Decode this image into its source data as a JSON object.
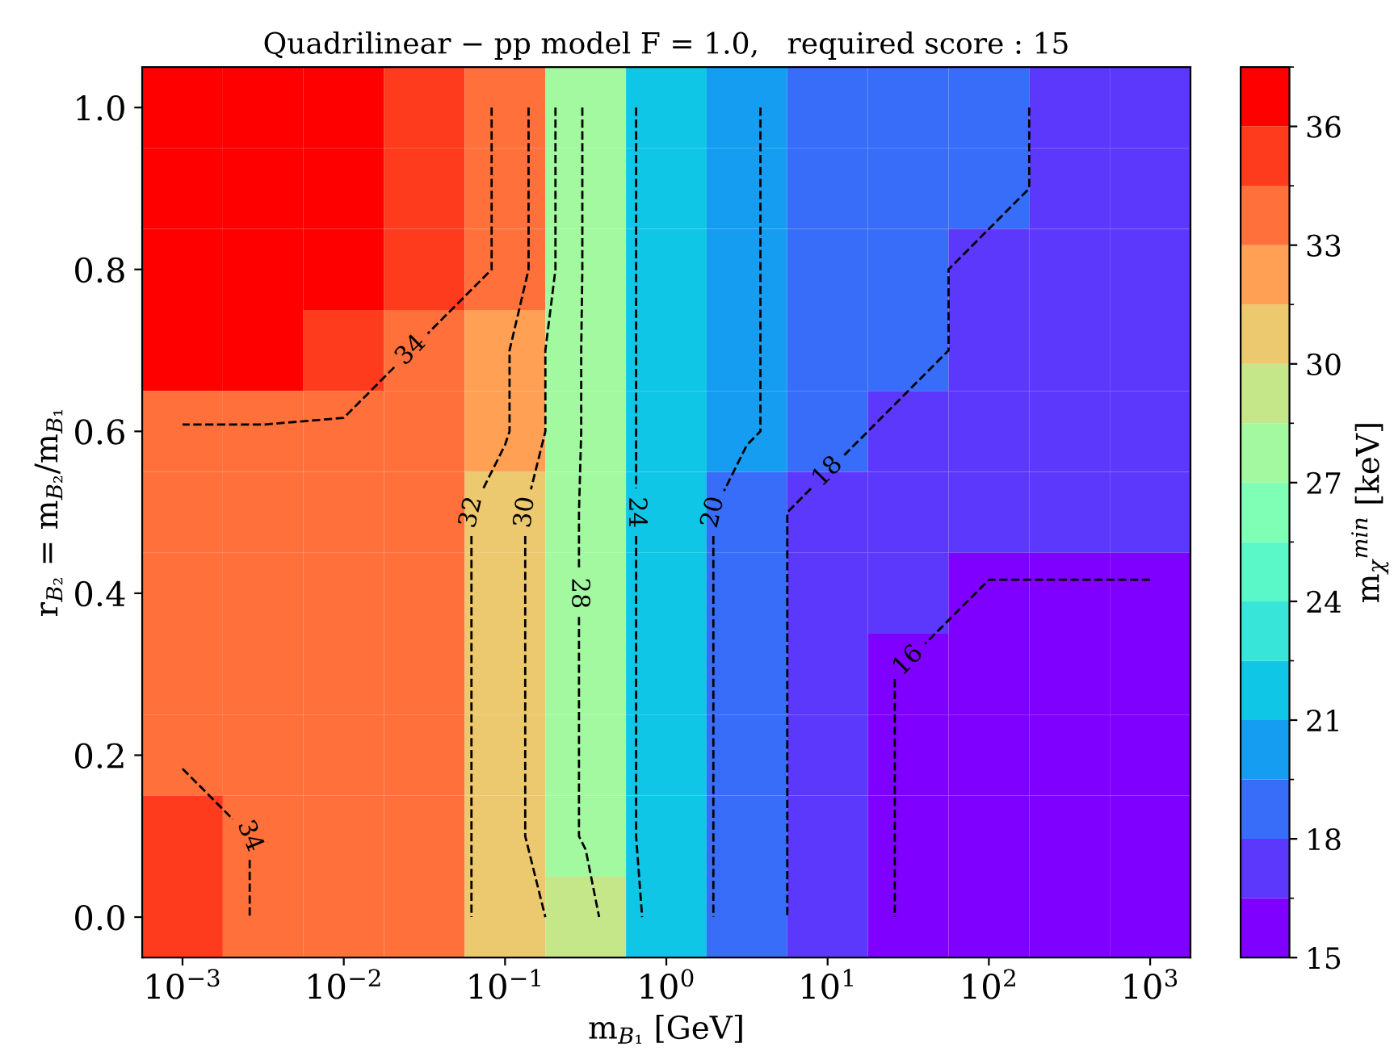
{
  "chart_data": {
    "type": "heatmap",
    "title": "Quadrilinear − pp model F = 1.0,   required score : 15",
    "xlabel": "m$_{B₁}$ [GeV]",
    "ylabel": "r$_{B₂}$ = m$_{B₂}$/m$_{B₁}$",
    "clabel": "m$_{χ}$$^{min}$ [keV]",
    "categories": [
      "10$^{−3}$",
      null,
      "10$^{−2}$",
      null,
      "10$^{−1}$",
      null,
      "10$^{0}$",
      null,
      "10$^{1}$",
      null,
      "10$^{2}$",
      null,
      "10$^{3}$"
    ],
    "y_categories": [
      "1.0",
      null,
      "0.8",
      null,
      "0.6",
      null,
      "0.4",
      null,
      "0.2",
      null,
      "0.0"
    ],
    "cells": [
      [
        36.75,
        36.75,
        36.75,
        35.25,
        33.75,
        27.75,
        21.75,
        20.25,
        18.75,
        18.75,
        18.75,
        17.25,
        17.25
      ],
      [
        36.75,
        36.75,
        36.75,
        35.25,
        33.75,
        27.75,
        21.75,
        20.25,
        18.75,
        18.75,
        18.75,
        17.25,
        17.25
      ],
      [
        36.75,
        36.75,
        36.75,
        35.25,
        33.75,
        27.75,
        21.75,
        20.25,
        18.75,
        18.75,
        17.25,
        17.25,
        17.25
      ],
      [
        36.75,
        36.75,
        35.25,
        33.75,
        32.25,
        27.75,
        21.75,
        20.25,
        18.75,
        18.75,
        17.25,
        17.25,
        17.25
      ],
      [
        33.75,
        33.75,
        33.75,
        33.75,
        32.25,
        27.75,
        21.75,
        20.25,
        18.75,
        17.25,
        17.25,
        17.25,
        17.25
      ],
      [
        33.75,
        33.75,
        33.75,
        33.75,
        30.75,
        27.75,
        21.75,
        18.75,
        17.25,
        17.25,
        17.25,
        17.25,
        17.25
      ],
      [
        33.75,
        33.75,
        33.75,
        33.75,
        30.75,
        27.75,
        21.75,
        18.75,
        17.25,
        17.25,
        15.75,
        15.75,
        15.75
      ],
      [
        33.75,
        33.75,
        33.75,
        33.75,
        30.75,
        27.75,
        21.75,
        18.75,
        17.25,
        15.75,
        15.75,
        15.75,
        15.75
      ],
      [
        33.75,
        33.75,
        33.75,
        33.75,
        30.75,
        27.75,
        21.75,
        18.75,
        17.25,
        15.75,
        15.75,
        15.75,
        15.75
      ],
      [
        35.25,
        33.75,
        33.75,
        33.75,
        30.75,
        27.75,
        21.75,
        18.75,
        17.25,
        15.75,
        15.75,
        15.75,
        15.75
      ],
      [
        35.25,
        33.75,
        33.75,
        33.75,
        30.75,
        29.25,
        21.75,
        18.75,
        17.25,
        15.75,
        15.75,
        15.75,
        15.75
      ]
    ],
    "clim": [
      15,
      37.5
    ],
    "cticks": [
      15,
      18,
      21,
      24,
      27,
      30,
      33,
      36
    ],
    "annotations": [
      "34",
      "32",
      "30",
      "28",
      "24",
      "20",
      "18",
      "16"
    ]
  }
}
